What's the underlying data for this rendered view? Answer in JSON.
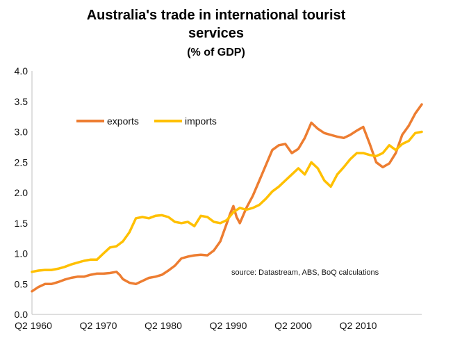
{
  "chart_data": {
    "type": "line",
    "title": "Australia's trade in international tourist services",
    "title_line1": "Australia's trade in international tourist",
    "title_line2": "services",
    "subtitle": "(% of GDP)",
    "note": "source:  Datastream, ABS, BoQ calculations",
    "xlim": [
      1960,
      2020
    ],
    "ylim": [
      0,
      4
    ],
    "y_ticks": [
      "0.0",
      "0.5",
      "1.0",
      "1.5",
      "2.0",
      "2.5",
      "3.0",
      "3.5",
      "4.0"
    ],
    "x_ticks": [
      {
        "label": "Q2 1960",
        "value": 1960
      },
      {
        "label": "Q2 1970",
        "value": 1970
      },
      {
        "label": "Q2 1980",
        "value": 1980
      },
      {
        "label": "Q2 1990",
        "value": 1990
      },
      {
        "label": "Q2 2000",
        "value": 2000
      },
      {
        "label": "Q2 2010",
        "value": 2010
      }
    ],
    "grid": false,
    "legend_position": "top-left",
    "series": [
      {
        "name": "exports",
        "color": "#ED7D31",
        "points": [
          [
            1960,
            0.38
          ],
          [
            1961,
            0.45
          ],
          [
            1962,
            0.5
          ],
          [
            1963,
            0.5
          ],
          [
            1964,
            0.53
          ],
          [
            1965,
            0.57
          ],
          [
            1966,
            0.6
          ],
          [
            1967,
            0.62
          ],
          [
            1968,
            0.62
          ],
          [
            1969,
            0.65
          ],
          [
            1970,
            0.67
          ],
          [
            1971,
            0.67
          ],
          [
            1972,
            0.68
          ],
          [
            1973,
            0.7
          ],
          [
            1973.5,
            0.65
          ],
          [
            1974,
            0.58
          ],
          [
            1975,
            0.52
          ],
          [
            1976,
            0.5
          ],
          [
            1977,
            0.55
          ],
          [
            1978,
            0.6
          ],
          [
            1979,
            0.62
          ],
          [
            1980,
            0.65
          ],
          [
            1981,
            0.72
          ],
          [
            1982,
            0.8
          ],
          [
            1983,
            0.92
          ],
          [
            1984,
            0.95
          ],
          [
            1985,
            0.97
          ],
          [
            1986,
            0.98
          ],
          [
            1987,
            0.97
          ],
          [
            1988,
            1.05
          ],
          [
            1989,
            1.2
          ],
          [
            1990,
            1.5
          ],
          [
            1990.5,
            1.65
          ],
          [
            1991,
            1.78
          ],
          [
            1991.5,
            1.6
          ],
          [
            1992,
            1.5
          ],
          [
            1993,
            1.75
          ],
          [
            1994,
            1.95
          ],
          [
            1995,
            2.2
          ],
          [
            1996,
            2.45
          ],
          [
            1997,
            2.7
          ],
          [
            1998,
            2.78
          ],
          [
            1999,
            2.8
          ],
          [
            2000,
            2.65
          ],
          [
            2001,
            2.72
          ],
          [
            2002,
            2.9
          ],
          [
            2003,
            3.15
          ],
          [
            2004,
            3.05
          ],
          [
            2005,
            2.98
          ],
          [
            2006,
            2.95
          ],
          [
            2007,
            2.92
          ],
          [
            2008,
            2.9
          ],
          [
            2009,
            2.95
          ],
          [
            2010,
            3.02
          ],
          [
            2011,
            3.08
          ],
          [
            2012,
            2.8
          ],
          [
            2013,
            2.5
          ],
          [
            2014,
            2.42
          ],
          [
            2015,
            2.48
          ],
          [
            2016,
            2.65
          ],
          [
            2017,
            2.95
          ],
          [
            2018,
            3.1
          ],
          [
            2019,
            3.3
          ],
          [
            2020,
            3.45
          ]
        ]
      },
      {
        "name": "imports",
        "color": "#FFC000",
        "points": [
          [
            1960,
            0.7
          ],
          [
            1961,
            0.72
          ],
          [
            1962,
            0.73
          ],
          [
            1963,
            0.73
          ],
          [
            1964,
            0.75
          ],
          [
            1965,
            0.78
          ],
          [
            1966,
            0.82
          ],
          [
            1967,
            0.85
          ],
          [
            1968,
            0.88
          ],
          [
            1969,
            0.9
          ],
          [
            1970,
            0.9
          ],
          [
            1971,
            1.0
          ],
          [
            1972,
            1.1
          ],
          [
            1973,
            1.12
          ],
          [
            1974,
            1.2
          ],
          [
            1975,
            1.35
          ],
          [
            1976,
            1.58
          ],
          [
            1977,
            1.6
          ],
          [
            1978,
            1.58
          ],
          [
            1979,
            1.62
          ],
          [
            1980,
            1.63
          ],
          [
            1981,
            1.6
          ],
          [
            1982,
            1.52
          ],
          [
            1983,
            1.5
          ],
          [
            1984,
            1.52
          ],
          [
            1985,
            1.45
          ],
          [
            1986,
            1.62
          ],
          [
            1987,
            1.6
          ],
          [
            1988,
            1.52
          ],
          [
            1989,
            1.5
          ],
          [
            1990,
            1.55
          ],
          [
            1991,
            1.68
          ],
          [
            1992,
            1.75
          ],
          [
            1993,
            1.72
          ],
          [
            1994,
            1.75
          ],
          [
            1995,
            1.8
          ],
          [
            1996,
            1.9
          ],
          [
            1997,
            2.02
          ],
          [
            1998,
            2.1
          ],
          [
            1999,
            2.2
          ],
          [
            2000,
            2.3
          ],
          [
            2001,
            2.4
          ],
          [
            2002,
            2.3
          ],
          [
            2003,
            2.5
          ],
          [
            2004,
            2.4
          ],
          [
            2005,
            2.2
          ],
          [
            2006,
            2.1
          ],
          [
            2007,
            2.3
          ],
          [
            2008,
            2.42
          ],
          [
            2009,
            2.55
          ],
          [
            2010,
            2.65
          ],
          [
            2011,
            2.65
          ],
          [
            2012,
            2.62
          ],
          [
            2013,
            2.6
          ],
          [
            2014,
            2.65
          ],
          [
            2015,
            2.78
          ],
          [
            2016,
            2.7
          ],
          [
            2017,
            2.8
          ],
          [
            2018,
            2.85
          ],
          [
            2019,
            2.98
          ],
          [
            2020,
            3.0
          ]
        ]
      }
    ]
  }
}
